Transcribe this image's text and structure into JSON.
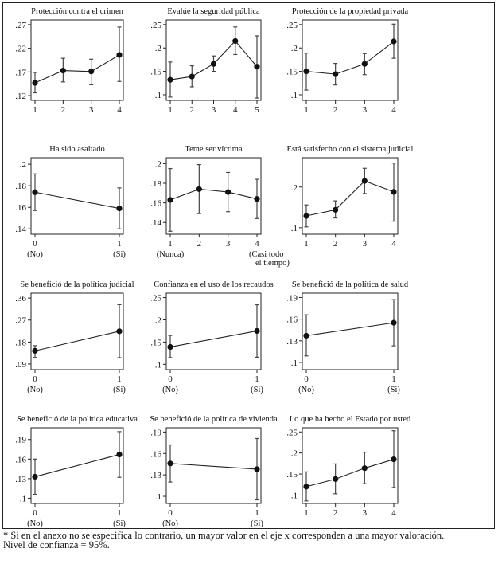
{
  "footnote": {
    "line1": "* Si en el anexo no se especifica lo contrario, un mayor valor en el eje x corresponden a una mayor valoración.",
    "line2": "Nivel de confianza = 95%."
  },
  "chart_data": [
    {
      "type": "line",
      "title": "Protección contra el crimen",
      "x": [
        1,
        2,
        3,
        4
      ],
      "xticks": [
        "1",
        "2",
        "3",
        "4"
      ],
      "xsub": [],
      "y": [
        0.147,
        0.173,
        0.171,
        0.206
      ],
      "ci_low": [
        0.126,
        0.149,
        0.143,
        0.15
      ],
      "ci_high": [
        0.169,
        0.199,
        0.197,
        0.265
      ],
      "yticks": [
        0.12,
        0.17,
        0.22,
        0.27
      ],
      "ytick_labels": [
        ".12",
        ".17",
        ".22",
        ".27"
      ],
      "ylim": [
        0.11,
        0.28
      ]
    },
    {
      "type": "line",
      "title": "Evalúe la seguridad pública",
      "x": [
        1,
        2,
        3,
        4,
        5
      ],
      "xticks": [
        "1",
        "2",
        "3",
        "4",
        "5"
      ],
      "xsub": [],
      "y": [
        0.132,
        0.139,
        0.166,
        0.215,
        0.16
      ],
      "ci_low": [
        0.095,
        0.117,
        0.15,
        0.186,
        0.093
      ],
      "ci_high": [
        0.17,
        0.162,
        0.183,
        0.245,
        0.226
      ],
      "yticks": [
        0.1,
        0.15,
        0.2,
        0.25
      ],
      "ytick_labels": [
        ".1",
        ".15",
        ".2",
        ".25"
      ],
      "ylim": [
        0.088,
        0.26
      ]
    },
    {
      "type": "line",
      "title": "Protección de la propiedad privada",
      "x": [
        1,
        2,
        3,
        4
      ],
      "xticks": [
        "1",
        "2",
        "3",
        "4"
      ],
      "xsub": [],
      "y": [
        0.15,
        0.144,
        0.166,
        0.214
      ],
      "ci_low": [
        0.11,
        0.121,
        0.143,
        0.178
      ],
      "ci_high": [
        0.189,
        0.167,
        0.188,
        0.251
      ],
      "yticks": [
        0.1,
        0.15,
        0.2,
        0.25
      ],
      "ytick_labels": [
        ".1",
        ".15",
        ".2",
        ".25"
      ],
      "ylim": [
        0.088,
        0.26
      ]
    },
    {
      "type": "line",
      "title": "Ha sido asaltado",
      "x": [
        0,
        1
      ],
      "xticks": [
        "0",
        "1"
      ],
      "xsub": [
        "(No)",
        "(Si)"
      ],
      "y": [
        0.174,
        0.159
      ],
      "ci_low": [
        0.157,
        0.14
      ],
      "ci_high": [
        0.191,
        0.178
      ],
      "yticks": [
        0.14,
        0.16,
        0.18,
        0.2
      ],
      "ytick_labels": [
        ".14",
        ".16",
        ".18",
        ".2"
      ],
      "ylim": [
        0.135,
        0.206
      ]
    },
    {
      "type": "line",
      "title": "Teme ser víctima",
      "x": [
        1,
        2,
        3,
        4
      ],
      "xticks": [
        "1",
        "2",
        "3",
        "4"
      ],
      "xsub": [
        "(Nunca)",
        "",
        "",
        "(Casi todo|el tiempo)"
      ],
      "y": [
        0.163,
        0.174,
        0.171,
        0.164
      ],
      "ci_low": [
        0.131,
        0.149,
        0.151,
        0.144
      ],
      "ci_high": [
        0.195,
        0.199,
        0.191,
        0.184
      ],
      "yticks": [
        0.14,
        0.16,
        0.18,
        0.2
      ],
      "ytick_labels": [
        ".14",
        ".16",
        ".18",
        ".2"
      ],
      "ylim": [
        0.128,
        0.206
      ]
    },
    {
      "type": "line",
      "title": "Está satisfecho con el sistema judicial",
      "x": [
        1,
        2,
        3,
        4
      ],
      "xticks": [
        "1",
        "2",
        "3",
        "4"
      ],
      "xsub": [],
      "y": [
        0.129,
        0.144,
        0.215,
        0.188
      ],
      "ci_low": [
        0.102,
        0.124,
        0.184,
        0.116
      ],
      "ci_high": [
        0.156,
        0.166,
        0.246,
        0.259
      ],
      "yticks": [
        0.1,
        0.2
      ],
      "ytick_labels": [
        ".1",
        ".2"
      ],
      "ylim": [
        0.084,
        0.272
      ]
    },
    {
      "type": "line",
      "title": "Se benefició de la política judicial",
      "x": [
        0,
        1
      ],
      "xticks": [
        "0",
        "1"
      ],
      "xsub": [
        "(No)",
        "(Si)"
      ],
      "y": [
        0.144,
        0.224
      ],
      "ci_low": [
        0.117,
        0.116
      ],
      "ci_high": [
        0.165,
        0.333
      ],
      "yticks": [
        0.09,
        0.18,
        0.27,
        0.36
      ],
      "ytick_labels": [
        ".09",
        ".18",
        ".27",
        ".36"
      ],
      "ylim": [
        0.067,
        0.38
      ]
    },
    {
      "type": "line",
      "title": "Confianza en el uso de los recaudos",
      "x": [
        0,
        1
      ],
      "xticks": [
        "0",
        "1"
      ],
      "xsub": [
        "(No)",
        "(Si)"
      ],
      "y": [
        0.139,
        0.175
      ],
      "ci_low": [
        0.115,
        0.116
      ],
      "ci_high": [
        0.165,
        0.234
      ],
      "yticks": [
        0.1,
        0.15,
        0.2,
        0.25
      ],
      "ytick_labels": [
        ".1",
        ".15",
        ".2",
        ".25"
      ],
      "ylim": [
        0.088,
        0.26
      ]
    },
    {
      "type": "line",
      "title": "Se benefició de la política de salud",
      "x": [
        0,
        1
      ],
      "xticks": [
        "0",
        "1"
      ],
      "xsub": [
        "(No)",
        "(Si)"
      ],
      "y": [
        0.137,
        0.155
      ],
      "ci_low": [
        0.109,
        0.123
      ],
      "ci_high": [
        0.166,
        0.187
      ],
      "yticks": [
        0.1,
        0.13,
        0.16,
        0.19
      ],
      "ytick_labels": [
        ".1",
        ".13",
        ".16",
        ".19"
      ],
      "ylim": [
        0.09,
        0.196
      ]
    },
    {
      "type": "line",
      "title": "Se benefició de la política educativa",
      "x": [
        0,
        1
      ],
      "xticks": [
        "0",
        "1"
      ],
      "xsub": [
        "(No)",
        "(Si)"
      ],
      "y": [
        0.133,
        0.167
      ],
      "ci_low": [
        0.106,
        0.132
      ],
      "ci_high": [
        0.16,
        0.202
      ],
      "yticks": [
        0.1,
        0.13,
        0.16,
        0.19
      ],
      "ytick_labels": [
        ".1",
        ".13",
        ".16",
        ".19"
      ],
      "ylim": [
        0.092,
        0.208
      ]
    },
    {
      "type": "line",
      "title": "Se benefició de la política de vivienda",
      "x": [
        0,
        1
      ],
      "xticks": [
        "0",
        "1"
      ],
      "xsub": [
        "(No)",
        "(Si)"
      ],
      "y": [
        0.146,
        0.138
      ],
      "ci_low": [
        0.12,
        0.095
      ],
      "ci_high": [
        0.172,
        0.181
      ],
      "yticks": [
        0.1,
        0.13,
        0.16,
        0.19
      ],
      "ytick_labels": [
        ".1",
        ".13",
        ".16",
        ".19"
      ],
      "ylim": [
        0.09,
        0.196
      ]
    },
    {
      "type": "line",
      "title": "Lo que ha hecho el Estado por usted",
      "x": [
        1,
        2,
        3,
        4
      ],
      "xticks": [
        "1",
        "2",
        "3",
        "4"
      ],
      "xsub": [],
      "y": [
        0.12,
        0.138,
        0.164,
        0.185
      ],
      "ci_low": [
        0.086,
        0.103,
        0.127,
        0.118
      ],
      "ci_high": [
        0.155,
        0.174,
        0.202,
        0.253
      ],
      "yticks": [
        0.1,
        0.15,
        0.2,
        0.25
      ],
      "ytick_labels": [
        ".1",
        ".15",
        ".2",
        ".25"
      ],
      "ylim": [
        0.08,
        0.26
      ]
    }
  ]
}
